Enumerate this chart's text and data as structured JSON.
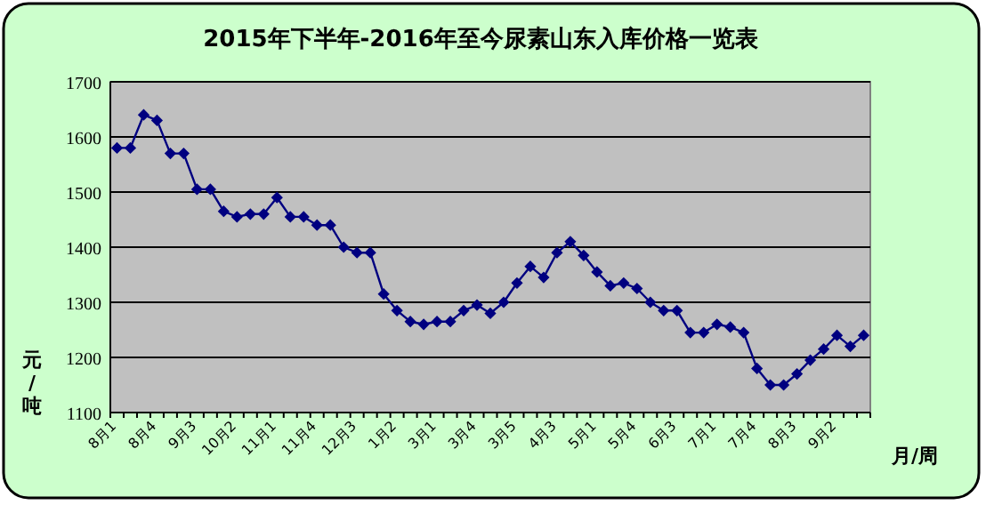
{
  "chart_data": {
    "type": "line",
    "title": "2015年下半年-2016年至今尿素山东入库价格一览表",
    "xlabel": "月/周",
    "ylabel": "元/吨",
    "categories": [
      "8月1",
      null,
      null,
      "8月4",
      null,
      null,
      "9月3",
      null,
      null,
      "10月2",
      null,
      null,
      "11月1",
      null,
      null,
      "11月4",
      null,
      null,
      "12月3",
      null,
      null,
      "1月2",
      null,
      null,
      "3月1",
      null,
      null,
      "3月4",
      null,
      null,
      "3月5",
      null,
      null,
      "4月3",
      null,
      null,
      "5月1",
      null,
      null,
      "5月4",
      null,
      null,
      "6月3",
      null,
      null,
      "7月1",
      null,
      null,
      "7月4",
      null,
      null,
      "8月3",
      null,
      null,
      "9月2",
      null,
      null
    ],
    "series": [
      {
        "color": "#000080",
        "values": [
          1580,
          1580,
          1640,
          1630,
          1570,
          1570,
          1505,
          1505,
          1465,
          1455,
          1460,
          1460,
          1490,
          1455,
          1455,
          1440,
          1440,
          1400,
          1390,
          1390,
          1315,
          1285,
          1265,
          1260,
          1265,
          1265,
          1285,
          1295,
          1280,
          1300,
          1335,
          1365,
          1345,
          1390,
          1410,
          1385,
          1355,
          1330,
          1335,
          1325,
          1300,
          1285,
          1285,
          1245,
          1245,
          1260,
          1255,
          1245,
          1180,
          1150,
          1150,
          1170,
          1195,
          1215,
          1240,
          1220,
          1240
        ]
      }
    ],
    "ylim": [
      1100,
      1700
    ],
    "yticks": [
      1100,
      1200,
      1300,
      1400,
      1500,
      1600,
      1700
    ],
    "grid": "y",
    "marker": "diamond",
    "line_style": "solid"
  }
}
